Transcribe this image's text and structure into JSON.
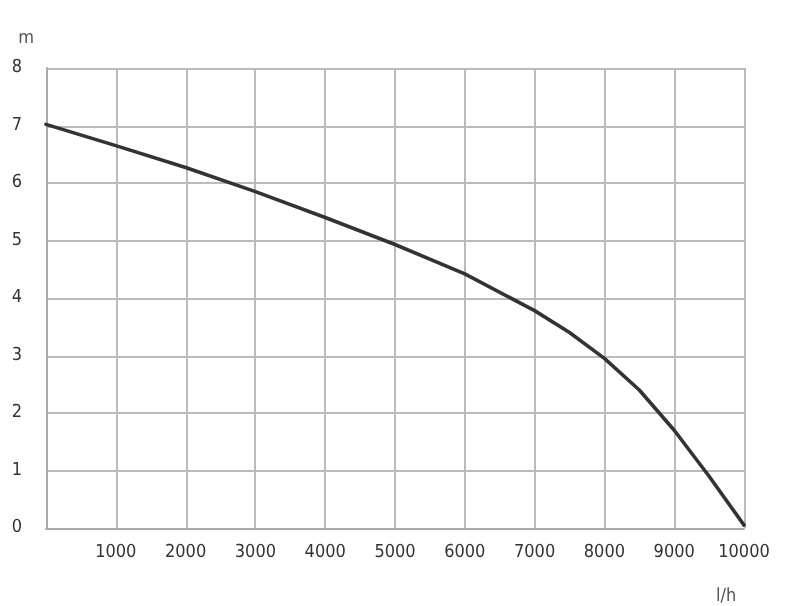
{
  "chart_data": {
    "type": "line",
    "xlabel": "l/h",
    "ylabel": "m",
    "x": [
      0,
      1000,
      2000,
      3000,
      4000,
      5000,
      6000,
      7000,
      7500,
      8000,
      8500,
      9000,
      9500,
      10000
    ],
    "series": [
      {
        "color": "#333333",
        "values": [
          7.02,
          6.65,
          6.27,
          5.85,
          5.4,
          4.93,
          4.42,
          3.78,
          3.4,
          2.95,
          2.4,
          1.7,
          0.9,
          0.05
        ]
      }
    ],
    "xlim": [
      0,
      10000
    ],
    "xticks": [
      1000,
      2000,
      3000,
      4000,
      5000,
      6000,
      7000,
      8000,
      9000,
      10000
    ],
    "ylim": [
      0,
      8
    ],
    "yticks": [
      0,
      1,
      2,
      3,
      4,
      5,
      6,
      7,
      8
    ],
    "grid": true,
    "marker": "none",
    "line_style": "solid"
  }
}
